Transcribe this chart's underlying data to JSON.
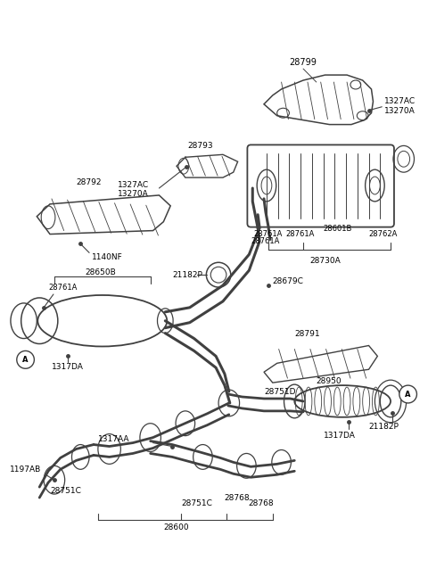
{
  "bg_color": "#ffffff",
  "line_color": "#404040",
  "text_color": "#000000",
  "figsize": [
    4.8,
    6.56
  ],
  "dpi": 100,
  "xlim": [
    0,
    480
  ],
  "ylim": [
    0,
    656
  ]
}
